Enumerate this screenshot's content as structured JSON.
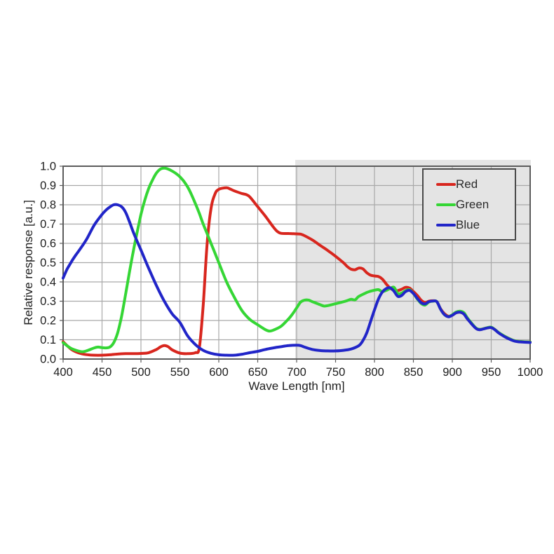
{
  "figure": {
    "background": "#ffffff",
    "frame_color": "#5c5c5c",
    "grid_color": "#a9a9a9",
    "text_color": "#1c1c1c",
    "shaded_region_color": "#e4e4e4"
  },
  "chart_data": {
    "type": "line",
    "title": "",
    "xlabel": "Wave Length [nm]",
    "ylabel": "Relative response [a.u.]",
    "xlim": [
      400,
      1000
    ],
    "ylim": [
      0.0,
      1.0
    ],
    "x_ticks": [
      400,
      450,
      500,
      550,
      600,
      650,
      700,
      750,
      800,
      850,
      900,
      950,
      1000
    ],
    "y_tick_labels": [
      "0.0",
      "0.1",
      "0.2",
      "0.3",
      "0.4",
      "0.5",
      "0.6",
      "0.7",
      "0.8",
      "0.9",
      "1.0"
    ],
    "grid": true,
    "legend": {
      "position": "top-right",
      "entries": [
        "Red",
        "Green",
        "Blue"
      ]
    },
    "shaded_region": {
      "x_start": 700,
      "x_end": 1000
    },
    "series": [
      {
        "name": "Red",
        "color": "#d8261e",
        "points": [
          [
            400,
            0.09
          ],
          [
            410,
            0.052
          ],
          [
            420,
            0.032
          ],
          [
            430,
            0.023
          ],
          [
            440,
            0.02
          ],
          [
            450,
            0.02
          ],
          [
            460,
            0.022
          ],
          [
            470,
            0.026
          ],
          [
            480,
            0.028
          ],
          [
            490,
            0.028
          ],
          [
            500,
            0.029
          ],
          [
            510,
            0.033
          ],
          [
            520,
            0.05
          ],
          [
            525,
            0.063
          ],
          [
            530,
            0.07
          ],
          [
            535,
            0.064
          ],
          [
            540,
            0.048
          ],
          [
            550,
            0.031
          ],
          [
            560,
            0.028
          ],
          [
            570,
            0.033
          ],
          [
            575,
            0.06
          ],
          [
            580,
            0.28
          ],
          [
            585,
            0.6
          ],
          [
            590,
            0.78
          ],
          [
            595,
            0.855
          ],
          [
            600,
            0.88
          ],
          [
            610,
            0.888
          ],
          [
            615,
            0.881
          ],
          [
            620,
            0.872
          ],
          [
            630,
            0.858
          ],
          [
            635,
            0.853
          ],
          [
            640,
            0.84
          ],
          [
            650,
            0.79
          ],
          [
            660,
            0.74
          ],
          [
            670,
            0.685
          ],
          [
            675,
            0.662
          ],
          [
            680,
            0.652
          ],
          [
            690,
            0.651
          ],
          [
            700,
            0.649
          ],
          [
            705,
            0.648
          ],
          [
            710,
            0.64
          ],
          [
            720,
            0.618
          ],
          [
            730,
            0.59
          ],
          [
            740,
            0.563
          ],
          [
            750,
            0.533
          ],
          [
            760,
            0.5
          ],
          [
            765,
            0.48
          ],
          [
            770,
            0.466
          ],
          [
            775,
            0.463
          ],
          [
            780,
            0.472
          ],
          [
            785,
            0.468
          ],
          [
            790,
            0.448
          ],
          [
            795,
            0.435
          ],
          [
            800,
            0.431
          ],
          [
            805,
            0.428
          ],
          [
            810,
            0.415
          ],
          [
            815,
            0.39
          ],
          [
            820,
            0.368
          ],
          [
            825,
            0.357
          ],
          [
            830,
            0.355
          ],
          [
            835,
            0.362
          ],
          [
            840,
            0.372
          ],
          [
            845,
            0.368
          ],
          [
            850,
            0.35
          ],
          [
            855,
            0.33
          ],
          [
            860,
            0.305
          ],
          [
            865,
            0.293
          ],
          [
            870,
            0.3
          ],
          [
            875,
            0.302
          ],
          [
            880,
            0.298
          ],
          [
            885,
            0.26
          ],
          [
            890,
            0.235
          ],
          [
            895,
            0.222
          ],
          [
            900,
            0.228
          ],
          [
            905,
            0.24
          ],
          [
            910,
            0.243
          ],
          [
            915,
            0.234
          ],
          [
            920,
            0.206
          ],
          [
            930,
            0.161
          ],
          [
            935,
            0.153
          ],
          [
            940,
            0.157
          ],
          [
            945,
            0.162
          ],
          [
            950,
            0.164
          ],
          [
            955,
            0.152
          ],
          [
            960,
            0.135
          ],
          [
            970,
            0.112
          ],
          [
            980,
            0.095
          ],
          [
            990,
            0.09
          ],
          [
            1000,
            0.088
          ]
        ]
      },
      {
        "name": "Green",
        "color": "#35d635",
        "points": [
          [
            400,
            0.085
          ],
          [
            410,
            0.056
          ],
          [
            420,
            0.041
          ],
          [
            425,
            0.038
          ],
          [
            430,
            0.042
          ],
          [
            440,
            0.058
          ],
          [
            445,
            0.062
          ],
          [
            450,
            0.059
          ],
          [
            455,
            0.058
          ],
          [
            460,
            0.062
          ],
          [
            465,
            0.085
          ],
          [
            470,
            0.135
          ],
          [
            475,
            0.22
          ],
          [
            480,
            0.33
          ],
          [
            485,
            0.445
          ],
          [
            490,
            0.555
          ],
          [
            495,
            0.655
          ],
          [
            500,
            0.75
          ],
          [
            505,
            0.825
          ],
          [
            510,
            0.885
          ],
          [
            515,
            0.93
          ],
          [
            520,
            0.965
          ],
          [
            525,
            0.985
          ],
          [
            530,
            0.99
          ],
          [
            535,
            0.985
          ],
          [
            540,
            0.975
          ],
          [
            545,
            0.962
          ],
          [
            550,
            0.945
          ],
          [
            555,
            0.922
          ],
          [
            560,
            0.892
          ],
          [
            565,
            0.852
          ],
          [
            570,
            0.805
          ],
          [
            575,
            0.755
          ],
          [
            580,
            0.7
          ],
          [
            585,
            0.65
          ],
          [
            590,
            0.6
          ],
          [
            595,
            0.55
          ],
          [
            600,
            0.5
          ],
          [
            610,
            0.4
          ],
          [
            620,
            0.32
          ],
          [
            630,
            0.25
          ],
          [
            640,
            0.205
          ],
          [
            650,
            0.178
          ],
          [
            660,
            0.152
          ],
          [
            665,
            0.145
          ],
          [
            670,
            0.15
          ],
          [
            680,
            0.17
          ],
          [
            690,
            0.21
          ],
          [
            695,
            0.235
          ],
          [
            700,
            0.265
          ],
          [
            705,
            0.295
          ],
          [
            710,
            0.305
          ],
          [
            715,
            0.306
          ],
          [
            720,
            0.298
          ],
          [
            730,
            0.282
          ],
          [
            735,
            0.275
          ],
          [
            740,
            0.277
          ],
          [
            750,
            0.287
          ],
          [
            760,
            0.297
          ],
          [
            765,
            0.303
          ],
          [
            770,
            0.31
          ],
          [
            775,
            0.307
          ],
          [
            780,
            0.325
          ],
          [
            790,
            0.345
          ],
          [
            795,
            0.352
          ],
          [
            800,
            0.357
          ],
          [
            805,
            0.36
          ],
          [
            810,
            0.35
          ],
          [
            815,
            0.356
          ],
          [
            820,
            0.366
          ],
          [
            825,
            0.372
          ],
          [
            830,
            0.34
          ],
          [
            835,
            0.342
          ],
          [
            840,
            0.355
          ],
          [
            845,
            0.36
          ],
          [
            850,
            0.34
          ],
          [
            855,
            0.312
          ],
          [
            860,
            0.288
          ],
          [
            865,
            0.28
          ],
          [
            870,
            0.296
          ],
          [
            875,
            0.3
          ],
          [
            880,
            0.298
          ],
          [
            885,
            0.258
          ],
          [
            890,
            0.23
          ],
          [
            895,
            0.22
          ],
          [
            900,
            0.23
          ],
          [
            905,
            0.244
          ],
          [
            910,
            0.248
          ],
          [
            915,
            0.24
          ],
          [
            920,
            0.21
          ],
          [
            930,
            0.162
          ],
          [
            935,
            0.154
          ],
          [
            940,
            0.157
          ],
          [
            945,
            0.163
          ],
          [
            950,
            0.165
          ],
          [
            955,
            0.152
          ],
          [
            960,
            0.136
          ],
          [
            970,
            0.112
          ],
          [
            980,
            0.095
          ],
          [
            990,
            0.09
          ],
          [
            1000,
            0.088
          ]
        ]
      },
      {
        "name": "Blue",
        "color": "#2125c8",
        "points": [
          [
            400,
            0.42
          ],
          [
            405,
            0.465
          ],
          [
            410,
            0.5
          ],
          [
            415,
            0.532
          ],
          [
            420,
            0.56
          ],
          [
            430,
            0.62
          ],
          [
            440,
            0.695
          ],
          [
            450,
            0.75
          ],
          [
            455,
            0.772
          ],
          [
            460,
            0.788
          ],
          [
            465,
            0.8
          ],
          [
            470,
            0.8
          ],
          [
            475,
            0.79
          ],
          [
            480,
            0.763
          ],
          [
            485,
            0.715
          ],
          [
            490,
            0.66
          ],
          [
            495,
            0.612
          ],
          [
            500,
            0.565
          ],
          [
            510,
            0.47
          ],
          [
            520,
            0.38
          ],
          [
            530,
            0.3
          ],
          [
            540,
            0.235
          ],
          [
            550,
            0.19
          ],
          [
            560,
            0.12
          ],
          [
            570,
            0.075
          ],
          [
            580,
            0.045
          ],
          [
            590,
            0.03
          ],
          [
            600,
            0.022
          ],
          [
            610,
            0.02
          ],
          [
            620,
            0.02
          ],
          [
            630,
            0.025
          ],
          [
            640,
            0.033
          ],
          [
            650,
            0.04
          ],
          [
            660,
            0.05
          ],
          [
            670,
            0.058
          ],
          [
            680,
            0.064
          ],
          [
            690,
            0.07
          ],
          [
            700,
            0.072
          ],
          [
            705,
            0.07
          ],
          [
            710,
            0.062
          ],
          [
            720,
            0.05
          ],
          [
            730,
            0.044
          ],
          [
            740,
            0.042
          ],
          [
            750,
            0.042
          ],
          [
            760,
            0.045
          ],
          [
            770,
            0.052
          ],
          [
            780,
            0.07
          ],
          [
            785,
            0.095
          ],
          [
            790,
            0.135
          ],
          [
            795,
            0.195
          ],
          [
            800,
            0.255
          ],
          [
            805,
            0.31
          ],
          [
            810,
            0.347
          ],
          [
            815,
            0.365
          ],
          [
            820,
            0.37
          ],
          [
            825,
            0.352
          ],
          [
            830,
            0.325
          ],
          [
            835,
            0.33
          ],
          [
            840,
            0.35
          ],
          [
            845,
            0.356
          ],
          [
            850,
            0.34
          ],
          [
            855,
            0.315
          ],
          [
            860,
            0.292
          ],
          [
            865,
            0.286
          ],
          [
            870,
            0.298
          ],
          [
            875,
            0.301
          ],
          [
            880,
            0.298
          ],
          [
            885,
            0.258
          ],
          [
            890,
            0.23
          ],
          [
            895,
            0.219
          ],
          [
            900,
            0.227
          ],
          [
            905,
            0.24
          ],
          [
            910,
            0.243
          ],
          [
            915,
            0.233
          ],
          [
            920,
            0.205
          ],
          [
            930,
            0.16
          ],
          [
            935,
            0.152
          ],
          [
            940,
            0.156
          ],
          [
            945,
            0.161
          ],
          [
            950,
            0.163
          ],
          [
            955,
            0.151
          ],
          [
            960,
            0.134
          ],
          [
            970,
            0.11
          ],
          [
            980,
            0.093
          ],
          [
            990,
            0.088
          ],
          [
            1000,
            0.086
          ]
        ]
      }
    ]
  }
}
